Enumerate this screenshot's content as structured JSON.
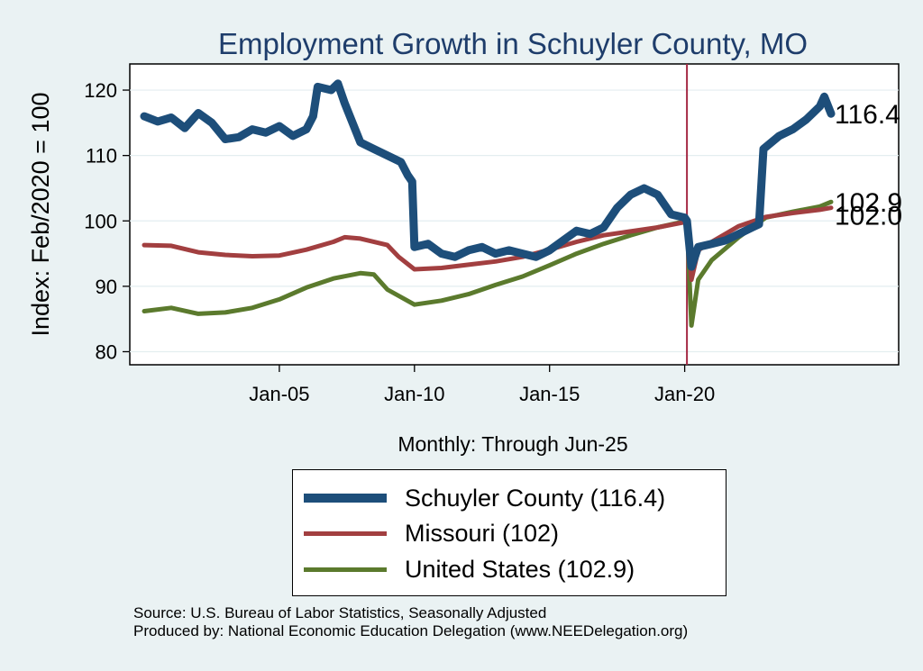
{
  "chart_data": {
    "type": "line",
    "title": "Employment Growth in Schuyler  County, MO",
    "xlabel": "Monthly: Through Jun-25",
    "ylabel": "Index: Feb/2020 = 100",
    "x_range": [
      "Jan-00",
      "Jun-25"
    ],
    "x_ticks": [
      "Jan-05",
      "Jan-10",
      "Jan-15",
      "Jan-20"
    ],
    "ylim": [
      78,
      124
    ],
    "y_ticks": [
      80,
      90,
      100,
      110,
      120
    ],
    "grid": true,
    "vertical_marker": "Feb-20",
    "legend_position": "bottom",
    "series": [
      {
        "name": "Schuyler  County (116.4)",
        "legend": "Schuyler  County (116.4)",
        "end_label": "116.4",
        "color": "#1d4e7a",
        "points": [
          [
            "Jan-00",
            116
          ],
          [
            "Jul-00",
            115.2
          ],
          [
            "Jan-01",
            115.8
          ],
          [
            "Jul-01",
            114.2
          ],
          [
            "Jan-02",
            116.5
          ],
          [
            "Jul-02",
            115
          ],
          [
            "Jan-03",
            112.5
          ],
          [
            "Jul-03",
            112.8
          ],
          [
            "Jan-04",
            114
          ],
          [
            "Jul-04",
            113.5
          ],
          [
            "Jan-05",
            114.5
          ],
          [
            "Jul-05",
            113
          ],
          [
            "Jan-06",
            114
          ],
          [
            "Apr-06",
            116
          ],
          [
            "Jun-06",
            120.5
          ],
          [
            "Dec-06",
            120
          ],
          [
            "Mar-07",
            121
          ],
          [
            "Jun-07",
            118
          ],
          [
            "Jan-08",
            112
          ],
          [
            "Jul-08",
            111
          ],
          [
            "Jan-09",
            110
          ],
          [
            "Jul-09",
            109
          ],
          [
            "Oct-09",
            107
          ],
          [
            "Dec-09",
            106
          ],
          [
            "Jan-10",
            96
          ],
          [
            "Jul-10",
            96.5
          ],
          [
            "Jan-11",
            95
          ],
          [
            "Jul-11",
            94.5
          ],
          [
            "Jan-12",
            95.5
          ],
          [
            "Jul-12",
            96
          ],
          [
            "Jan-13",
            95
          ],
          [
            "Jul-13",
            95.5
          ],
          [
            "Jan-14",
            95
          ],
          [
            "Jul-14",
            94.5
          ],
          [
            "Jan-15",
            95.5
          ],
          [
            "Jul-15",
            97
          ],
          [
            "Jan-16",
            98.5
          ],
          [
            "Jul-16",
            98
          ],
          [
            "Jan-17",
            99
          ],
          [
            "Jul-17",
            102
          ],
          [
            "Jan-18",
            104
          ],
          [
            "Jul-18",
            105
          ],
          [
            "Jan-19",
            104
          ],
          [
            "Jul-19",
            101
          ],
          [
            "Jan-20",
            100.5
          ],
          [
            "Feb-20",
            100
          ],
          [
            "Apr-20",
            93
          ],
          [
            "Jul-20",
            96
          ],
          [
            "Jan-21",
            96.5
          ],
          [
            "Jul-21",
            97
          ],
          [
            "Jan-22",
            98
          ],
          [
            "Jul-22",
            99
          ],
          [
            "Oct-22",
            99.5
          ],
          [
            "Dec-22",
            111
          ],
          [
            "Jul-23",
            113
          ],
          [
            "Jan-24",
            114
          ],
          [
            "Jul-24",
            115.5
          ],
          [
            "Jan-25",
            117.5
          ],
          [
            "Mar-25",
            119
          ],
          [
            "Jun-25",
            116.4
          ]
        ]
      },
      {
        "name": "Missouri (102)",
        "legend": "Missouri (102)",
        "end_label": "102.0",
        "color": "#a23f40",
        "points": [
          [
            "Jan-00",
            96.3
          ],
          [
            "Jan-01",
            96.2
          ],
          [
            "Jan-02",
            95.2
          ],
          [
            "Jan-03",
            94.8
          ],
          [
            "Jan-04",
            94.6
          ],
          [
            "Jan-05",
            94.7
          ],
          [
            "Jan-06",
            95.6
          ],
          [
            "Jan-07",
            96.8
          ],
          [
            "Jun-07",
            97.5
          ],
          [
            "Jan-08",
            97.3
          ],
          [
            "Jan-09",
            96.3
          ],
          [
            "Jun-09",
            94.5
          ],
          [
            "Jan-10",
            92.6
          ],
          [
            "Jan-11",
            92.8
          ],
          [
            "Jan-12",
            93.3
          ],
          [
            "Jan-13",
            93.8
          ],
          [
            "Jan-14",
            94.5
          ],
          [
            "Jan-15",
            95.6
          ],
          [
            "Jan-16",
            96.8
          ],
          [
            "Jan-17",
            97.8
          ],
          [
            "Jan-18",
            98.4
          ],
          [
            "Jan-19",
            99
          ],
          [
            "Jan-20",
            99.8
          ],
          [
            "Feb-20",
            100
          ],
          [
            "Apr-20",
            91
          ],
          [
            "Jul-20",
            95.5
          ],
          [
            "Jan-21",
            96.8
          ],
          [
            "Jan-22",
            99.2
          ],
          [
            "Jan-23",
            100.6
          ],
          [
            "Jan-24",
            101.2
          ],
          [
            "Jan-25",
            101.7
          ],
          [
            "Jun-25",
            102
          ]
        ]
      },
      {
        "name": "United States (102.9)",
        "legend": "United States (102.9)",
        "end_label": "102.9",
        "color": "#5b7a2d",
        "points": [
          [
            "Jan-00",
            86.2
          ],
          [
            "Jan-01",
            86.7
          ],
          [
            "Jan-02",
            85.8
          ],
          [
            "Jan-03",
            86
          ],
          [
            "Jan-04",
            86.7
          ],
          [
            "Jan-05",
            88
          ],
          [
            "Jan-06",
            89.8
          ],
          [
            "Jan-07",
            91.2
          ],
          [
            "Jan-08",
            92
          ],
          [
            "Jul-08",
            91.8
          ],
          [
            "Jan-09",
            89.5
          ],
          [
            "Jan-10",
            87.2
          ],
          [
            "Jan-11",
            87.8
          ],
          [
            "Jan-12",
            88.8
          ],
          [
            "Jan-13",
            90.2
          ],
          [
            "Jan-14",
            91.5
          ],
          [
            "Jan-15",
            93.2
          ],
          [
            "Jan-16",
            95
          ],
          [
            "Jan-17",
            96.5
          ],
          [
            "Jan-18",
            97.8
          ],
          [
            "Jan-19",
            99
          ],
          [
            "Feb-20",
            100
          ],
          [
            "Apr-20",
            84
          ],
          [
            "Jul-20",
            91
          ],
          [
            "Jan-21",
            94
          ],
          [
            "Jan-22",
            97.5
          ],
          [
            "Jan-23",
            100.5
          ],
          [
            "Jan-24",
            101.4
          ],
          [
            "Jan-25",
            102.2
          ],
          [
            "Jun-25",
            102.9
          ]
        ]
      }
    ]
  },
  "notes": {
    "source": "Source: U.S. Bureau of Labor Statistics, Seasonally Adjusted",
    "produced": "Produced by: National Economic Education Delegation (www.NEEDelegation.org)"
  }
}
